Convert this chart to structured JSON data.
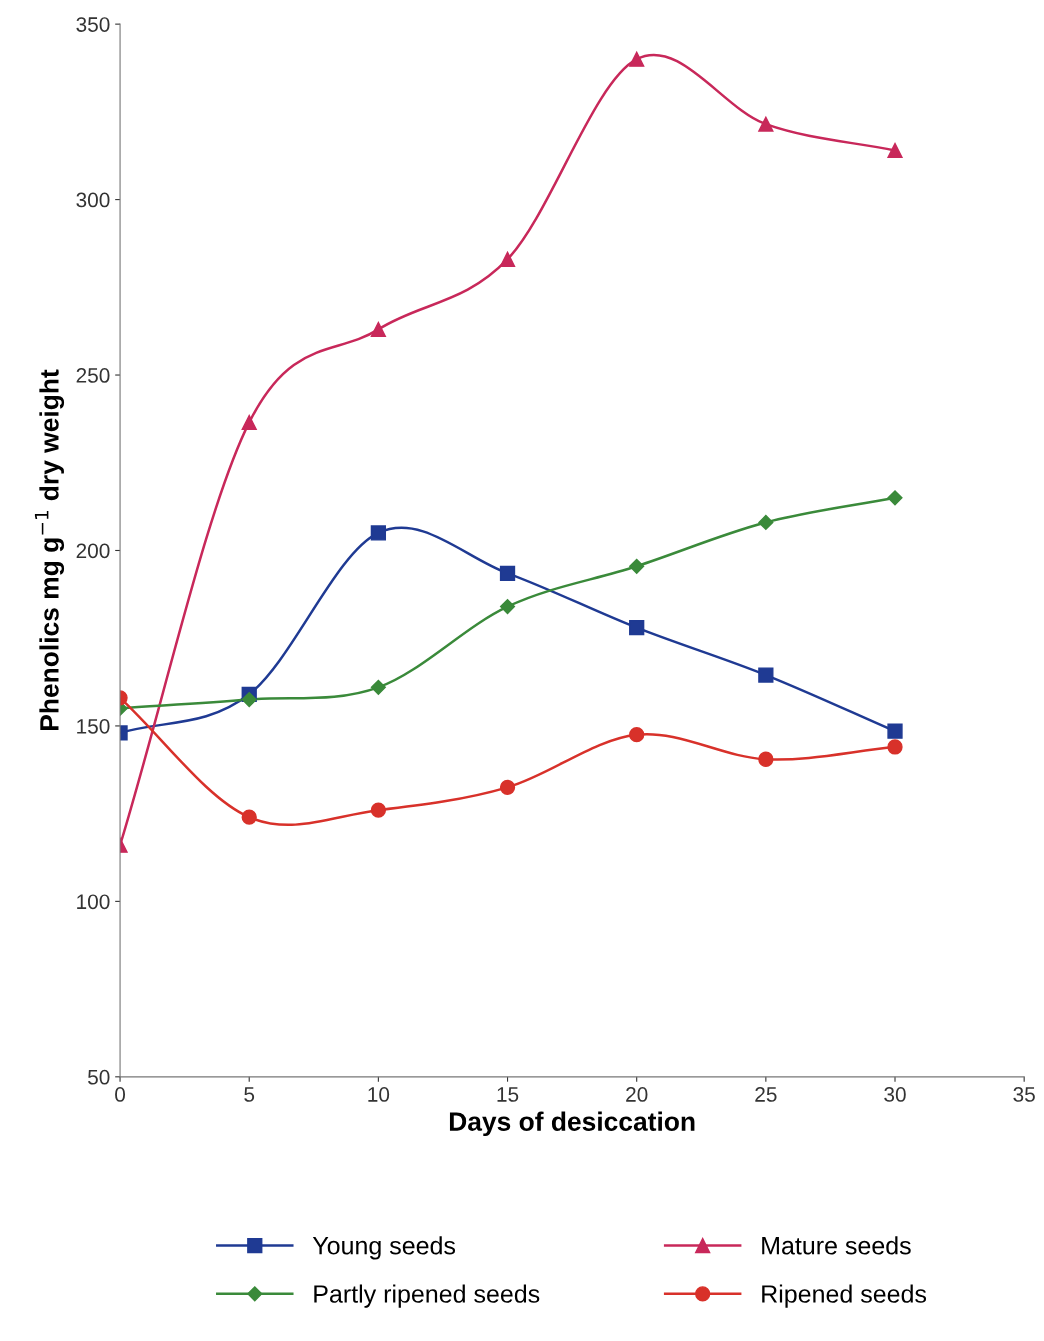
{
  "chart_data": {
    "type": "line",
    "xlabel": "Days of desiccation",
    "ylabel": "Phenolics mg g$^{−1}$ dry weight",
    "x": [
      0,
      5,
      10,
      15,
      20,
      25,
      30
    ],
    "series": [
      {
        "name": "Young seeds",
        "color": "#1f3a93",
        "marker": "square",
        "values": [
          148,
          159,
          205,
          193.5,
          178,
          164.5,
          148.5
        ]
      },
      {
        "name": "Mature seeds",
        "color": "#c8285a",
        "marker": "triangle",
        "values": [
          116,
          236.5,
          263,
          283,
          340,
          321.5,
          314
        ]
      },
      {
        "name": "Partly ripened seeds",
        "color": "#3a8a3a",
        "marker": "diamond",
        "values": [
          155,
          157.5,
          161,
          184,
          195.5,
          208,
          215
        ]
      },
      {
        "name": "Ripened seeds",
        "color": "#d8312a",
        "marker": "circle",
        "values": [
          158,
          124,
          126,
          132.5,
          147.5,
          140.5,
          144
        ]
      }
    ],
    "xlim": [
      0,
      35
    ],
    "xticks": [
      0,
      5,
      10,
      15,
      20,
      25,
      30,
      35
    ],
    "ylim": [
      50,
      350
    ],
    "yticks": [
      50,
      100,
      150,
      200,
      250,
      300,
      350
    ],
    "grid": false,
    "legend": "bottom",
    "line_style": "solid"
  }
}
